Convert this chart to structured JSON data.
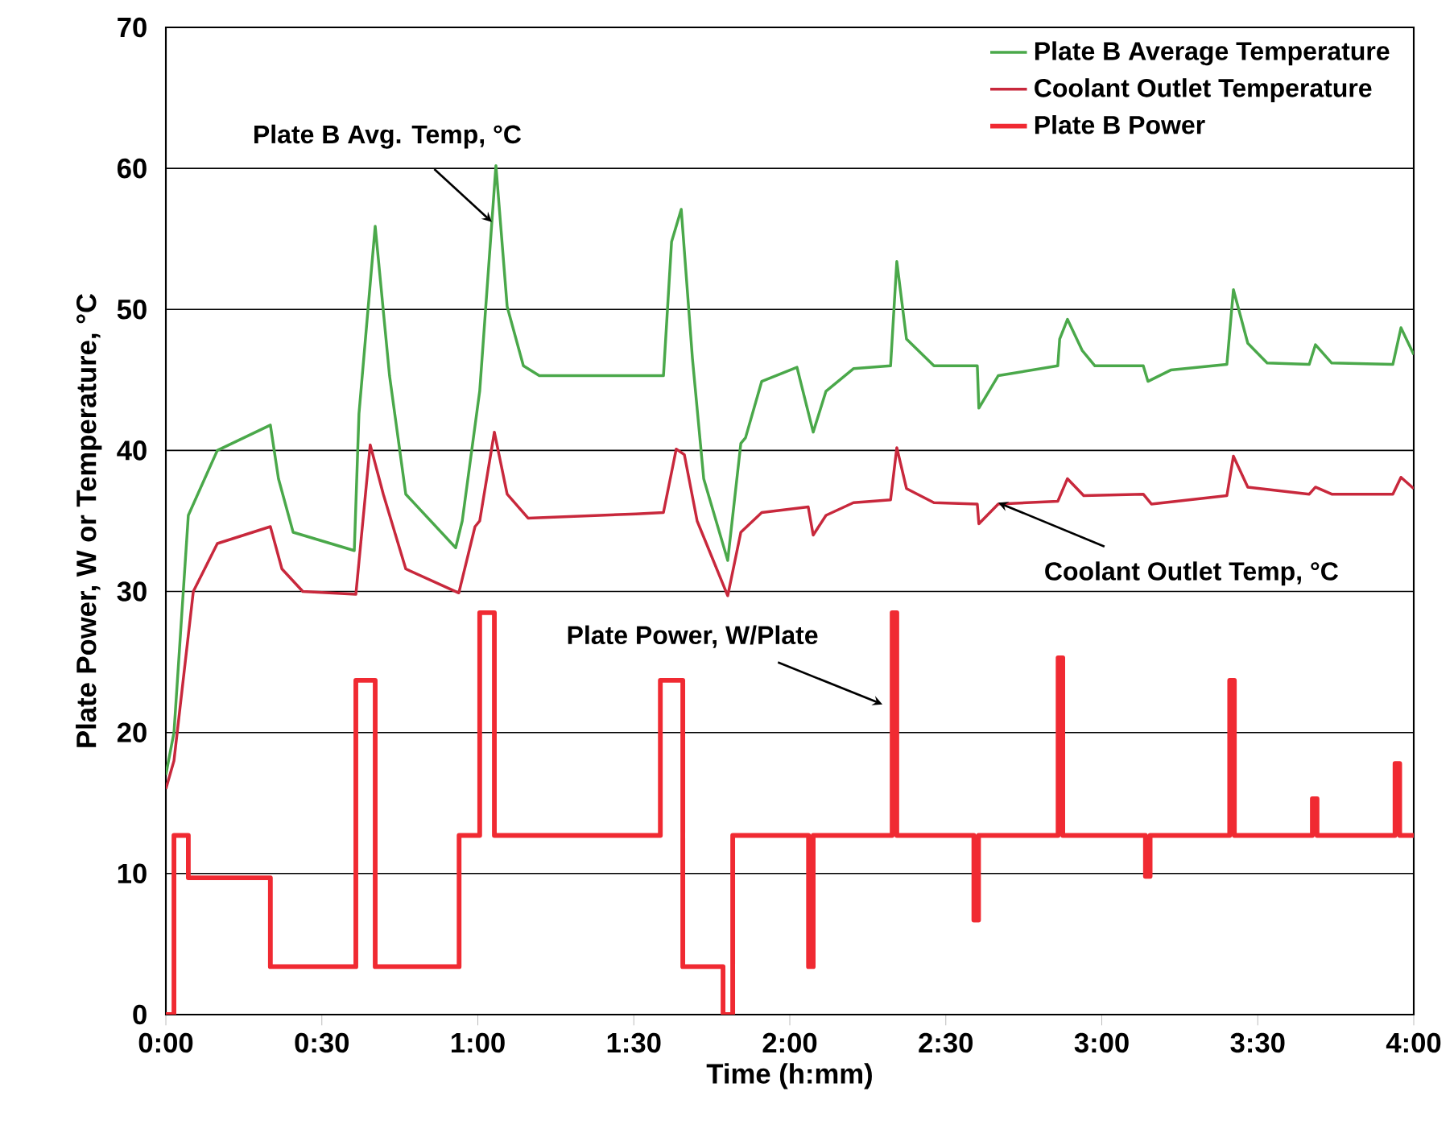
{
  "chart_data": {
    "type": "line",
    "xlabel": "Time (h:mm)",
    "ylabel": "Plate Power, W or   Temperature, °C",
    "xlim": [
      0,
      4
    ],
    "ylim": [
      0,
      70
    ],
    "xticks": [
      {
        "value": 0,
        "label": "0:00"
      },
      {
        "value": 0.5,
        "label": "0:30"
      },
      {
        "value": 1,
        "label": "1:00"
      },
      {
        "value": 1.5,
        "label": "1:30"
      },
      {
        "value": 2,
        "label": "2:00"
      },
      {
        "value": 2.5,
        "label": "2:30"
      },
      {
        "value": 3,
        "label": "3:00"
      },
      {
        "value": 3.5,
        "label": "3:30"
      },
      {
        "value": 4,
        "label": "4:00"
      }
    ],
    "yticks": [
      0,
      10,
      20,
      30,
      40,
      50,
      60,
      70
    ],
    "grid": "y",
    "legend": "top right",
    "series": [
      {
        "name": "Plate B Average Temperature",
        "color": "#4aa84a",
        "x": [
          0,
          0.026,
          0.072,
          0.165,
          0.335,
          0.361,
          0.408,
          0.604,
          0.619,
          0.671,
          0.717,
          0.769,
          0.929,
          0.95,
          1.001,
          1.006,
          1.058,
          1.094,
          1.146,
          1.197,
          1.595,
          1.621,
          1.652,
          1.688,
          1.724,
          1.801,
          1.843,
          1.858,
          1.91,
          2.023,
          2.075,
          2.116,
          2.204,
          2.323,
          2.343,
          2.374,
          2.462,
          2.601,
          2.606,
          2.668,
          2.859,
          2.865,
          2.89,
          2.937,
          2.978,
          3.133,
          3.148,
          3.221,
          3.401,
          3.422,
          3.468,
          3.53,
          3.665,
          3.685,
          3.737,
          3.933,
          3.959,
          4.0
        ],
        "values": [
          17,
          20,
          35.4,
          40,
          41.8,
          38,
          34.2,
          32.9,
          42.6,
          55.9,
          45.3,
          36.9,
          33.1,
          35,
          43.4,
          44.2,
          60.2,
          50.2,
          46,
          45.3,
          45.3,
          54.8,
          57.1,
          46.5,
          38,
          32.2,
          40.5,
          40.9,
          44.9,
          45.9,
          41.3,
          44.2,
          45.8,
          46,
          53.4,
          47.9,
          46,
          46,
          43,
          45.3,
          46,
          47.9,
          49.3,
          47.1,
          46,
          46,
          44.9,
          45.7,
          46.1,
          51.4,
          47.6,
          46.2,
          46.1,
          47.5,
          46.2,
          46.1,
          48.7,
          46.8
        ]
      },
      {
        "name": "Coolant Outlet Temperature",
        "color": "#c8283c",
        "x": [
          0,
          0.026,
          0.088,
          0.165,
          0.335,
          0.372,
          0.439,
          0.609,
          0.655,
          0.697,
          0.769,
          0.939,
          0.991,
          1.006,
          1.053,
          1.094,
          1.161,
          1.507,
          1.595,
          1.636,
          1.662,
          1.703,
          1.801,
          1.843,
          1.91,
          2.059,
          2.075,
          2.116,
          2.204,
          2.323,
          2.343,
          2.374,
          2.462,
          2.601,
          2.606,
          2.668,
          2.859,
          2.89,
          2.942,
          3.133,
          3.159,
          3.401,
          3.422,
          3.468,
          3.665,
          3.685,
          3.737,
          3.933,
          3.959,
          4.0
        ],
        "values": [
          16,
          18,
          30,
          33.4,
          34.6,
          31.6,
          30,
          29.8,
          40.4,
          36.9,
          31.6,
          29.9,
          34.6,
          35,
          41.3,
          36.9,
          35.2,
          35.5,
          35.6,
          40.1,
          39.7,
          35,
          29.7,
          34.2,
          35.6,
          36,
          34,
          35.4,
          36.3,
          36.5,
          40.2,
          37.3,
          36.3,
          36.2,
          34.8,
          36.2,
          36.4,
          38,
          36.8,
          36.9,
          36.2,
          36.8,
          39.6,
          37.4,
          36.9,
          37.4,
          36.9,
          36.9,
          38.1,
          37.3
        ]
      },
      {
        "name": "Plate B Power",
        "type": "step",
        "color": "#f02a32",
        "x": [
          0,
          0.026,
          0.072,
          0.335,
          0.609,
          0.671,
          0.94,
          1.006,
          1.053,
          1.585,
          1.657,
          1.786,
          1.817,
          2.06,
          2.075,
          2.328,
          2.343,
          2.59,
          2.605,
          2.86,
          2.875,
          3.14,
          3.155,
          3.41,
          3.425,
          3.675,
          3.69,
          3.94,
          3.955,
          4.0
        ],
        "values": [
          0,
          12.7,
          9.7,
          3.4,
          23.7,
          3.4,
          12.7,
          28.5,
          12.7,
          23.7,
          3.4,
          0,
          12.7,
          3.4,
          12.7,
          28.5,
          12.7,
          6.7,
          12.7,
          25.3,
          12.7,
          9.8,
          12.7,
          23.7,
          12.7,
          15.3,
          12.7,
          17.8,
          12.7,
          12.7
        ]
      }
    ],
    "annotations": [
      {
        "text": "Plate B Avg. Temp, °C",
        "x": 1.045,
        "y": 56.2
      },
      {
        "text": "Coolant Outlet Temp, °C",
        "x": 2.668,
        "y": 36.3
      },
      {
        "text": "Plate Power,  W/Plate",
        "x": 2.297,
        "y": 22
      }
    ]
  }
}
